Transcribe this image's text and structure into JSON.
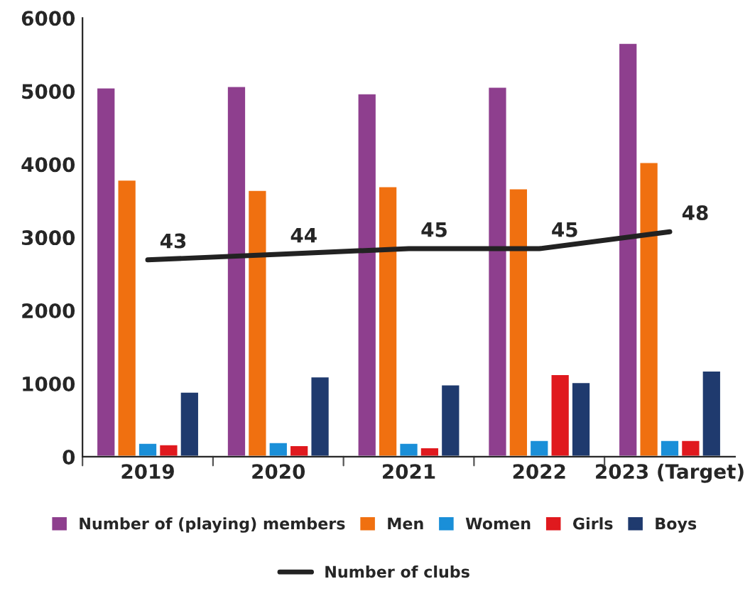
{
  "chart_data": {
    "type": "bar",
    "categories": [
      "2019",
      "2020",
      "2021",
      "2022",
      "2023 (Target)"
    ],
    "series": [
      {
        "name": "Number of (playing) members",
        "color": "#8e3f8e",
        "values": [
          5050,
          5070,
          4970,
          5060,
          5660
        ]
      },
      {
        "name": "Men",
        "color": "#f07010",
        "values": [
          3790,
          3650,
          3700,
          3670,
          4030
        ]
      },
      {
        "name": "Women",
        "color": "#1a8fd8",
        "values": [
          190,
          200,
          190,
          230,
          230
        ]
      },
      {
        "name": "Girls",
        "color": "#e0191e",
        "values": [
          170,
          160,
          130,
          1130,
          230
        ]
      },
      {
        "name": "Boys",
        "color": "#1f3a6e",
        "values": [
          890,
          1100,
          990,
          1020,
          1180
        ]
      },
      {
        "name": "Number of clubs",
        "type": "line",
        "axis": "y2",
        "color": "#222222",
        "values": [
          43,
          44,
          45,
          45,
          48
        ],
        "data_labels": true
      }
    ],
    "ylim": [
      0,
      6000
    ],
    "yticks": [
      0,
      1000,
      2000,
      3000,
      4000,
      5000,
      6000
    ],
    "y2lim": [
      8,
      86
    ],
    "tick_labels": "xy",
    "grid": false,
    "legend": "bottom",
    "marker": "none"
  }
}
